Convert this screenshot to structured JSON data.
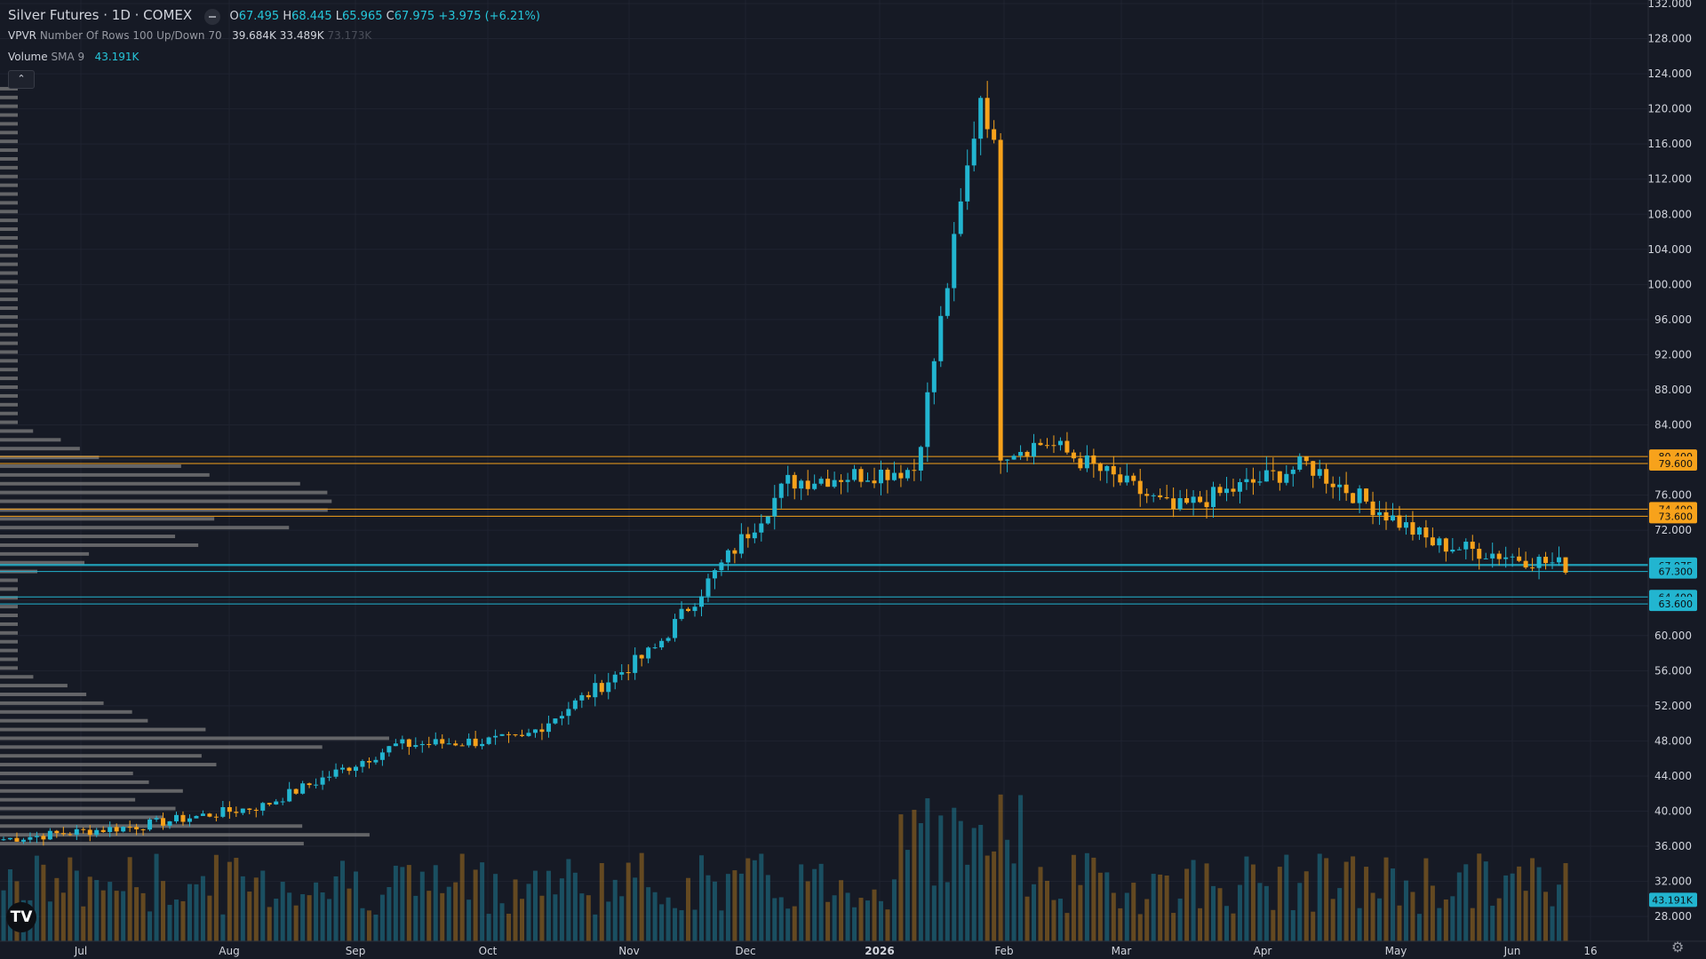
{
  "header": {
    "symbol": "Silver Futures · 1D · COMEX",
    "ohlc": [
      {
        "k": "O",
        "v": "67.495"
      },
      {
        "k": "H",
        "v": "68.445"
      },
      {
        "k": "L",
        "v": "65.965"
      },
      {
        "k": "C",
        "v": "67.975"
      }
    ],
    "change": "+3.975 (+6.21%)"
  },
  "vpvr": {
    "name": "VPVR",
    "params": "Number Of Rows 100 Up/Down 70",
    "up": "39.684K",
    "down": "33.489K",
    "total": "73.173K"
  },
  "volume": {
    "name": "Volume",
    "params": "SMA 9",
    "value": "43.191K"
  },
  "ui": {
    "collapse_icon": "chevron-up-icon",
    "logo": "TV",
    "settings_icon": "gear-icon"
  },
  "colors": {
    "background": "#161a25",
    "up": "#22b5d0",
    "down": "#f7a21b",
    "grid": "#1f2330",
    "profile": "#7f7f7f"
  },
  "chart_data": {
    "type": "candlestick",
    "title": "Silver Futures · 1D · COMEX",
    "ylim": [
      27,
      132
    ],
    "y_ticks": [
      "28.000",
      "32.000",
      "36.000",
      "40.000",
      "44.000",
      "48.000",
      "52.000",
      "56.000",
      "60.000",
      "64.000",
      "68.000",
      "72.000",
      "76.000",
      "80.000",
      "84.000",
      "88.000",
      "92.000",
      "96.000",
      "100.000",
      "104.000",
      "108.000",
      "112.000",
      "116.000",
      "120.000",
      "124.000",
      "128.000",
      "132.000"
    ],
    "x_ticks": [
      "Jul",
      "Aug",
      "Sep",
      "Oct",
      "Nov",
      "Dec",
      "2026",
      "Feb",
      "Mar",
      "Apr",
      "May",
      "Jun",
      "16"
    ],
    "grid": true,
    "series": [
      {
        "name": "Silver Futures",
        "close_path": [
          {
            "x": "Jul",
            "y": 36.8
          },
          {
            "x": "Aug",
            "y": 38.3
          },
          {
            "x": "Sep",
            "y": 40.6
          },
          {
            "x": "Oct",
            "y": 47.5
          },
          {
            "x": "Nov",
            "y": 48.2
          },
          {
            "x": "Dec",
            "y": 58.5
          },
          {
            "x": "2026",
            "y": 77.5
          },
          {
            "x": "Feb",
            "y": 79.0
          },
          {
            "x": "Mar",
            "y": 82.0
          },
          {
            "x": "Apr",
            "y": 74.3
          },
          {
            "x": "May",
            "y": 79.5
          },
          {
            "x": "Jun",
            "y": 70.5
          },
          {
            "x": "last",
            "y": 67.975
          }
        ]
      }
    ],
    "annotations": [
      {
        "label": "80.400",
        "value": 80.4,
        "color": "#f7a21b"
      },
      {
        "label": "79.600",
        "value": 79.6,
        "color": "#f7a21b"
      },
      {
        "label": "74.400",
        "value": 74.4,
        "color": "#f7a21b"
      },
      {
        "label": "73.600",
        "value": 73.6,
        "color": "#f7a21b"
      },
      {
        "label": "68.100",
        "value": 68.1,
        "color": "#22b5d0"
      },
      {
        "label": "67.975",
        "value": 67.975,
        "color": "#22b5d0"
      },
      {
        "label": "67.300",
        "value": 67.3,
        "color": "#22b5d0"
      },
      {
        "label": "64.400",
        "value": 64.4,
        "color": "#22b5d0"
      },
      {
        "label": "63.600",
        "value": 63.6,
        "color": "#22b5d0"
      },
      {
        "label": "43.191K",
        "value": 29.9,
        "color": "#22b5d0"
      }
    ]
  }
}
